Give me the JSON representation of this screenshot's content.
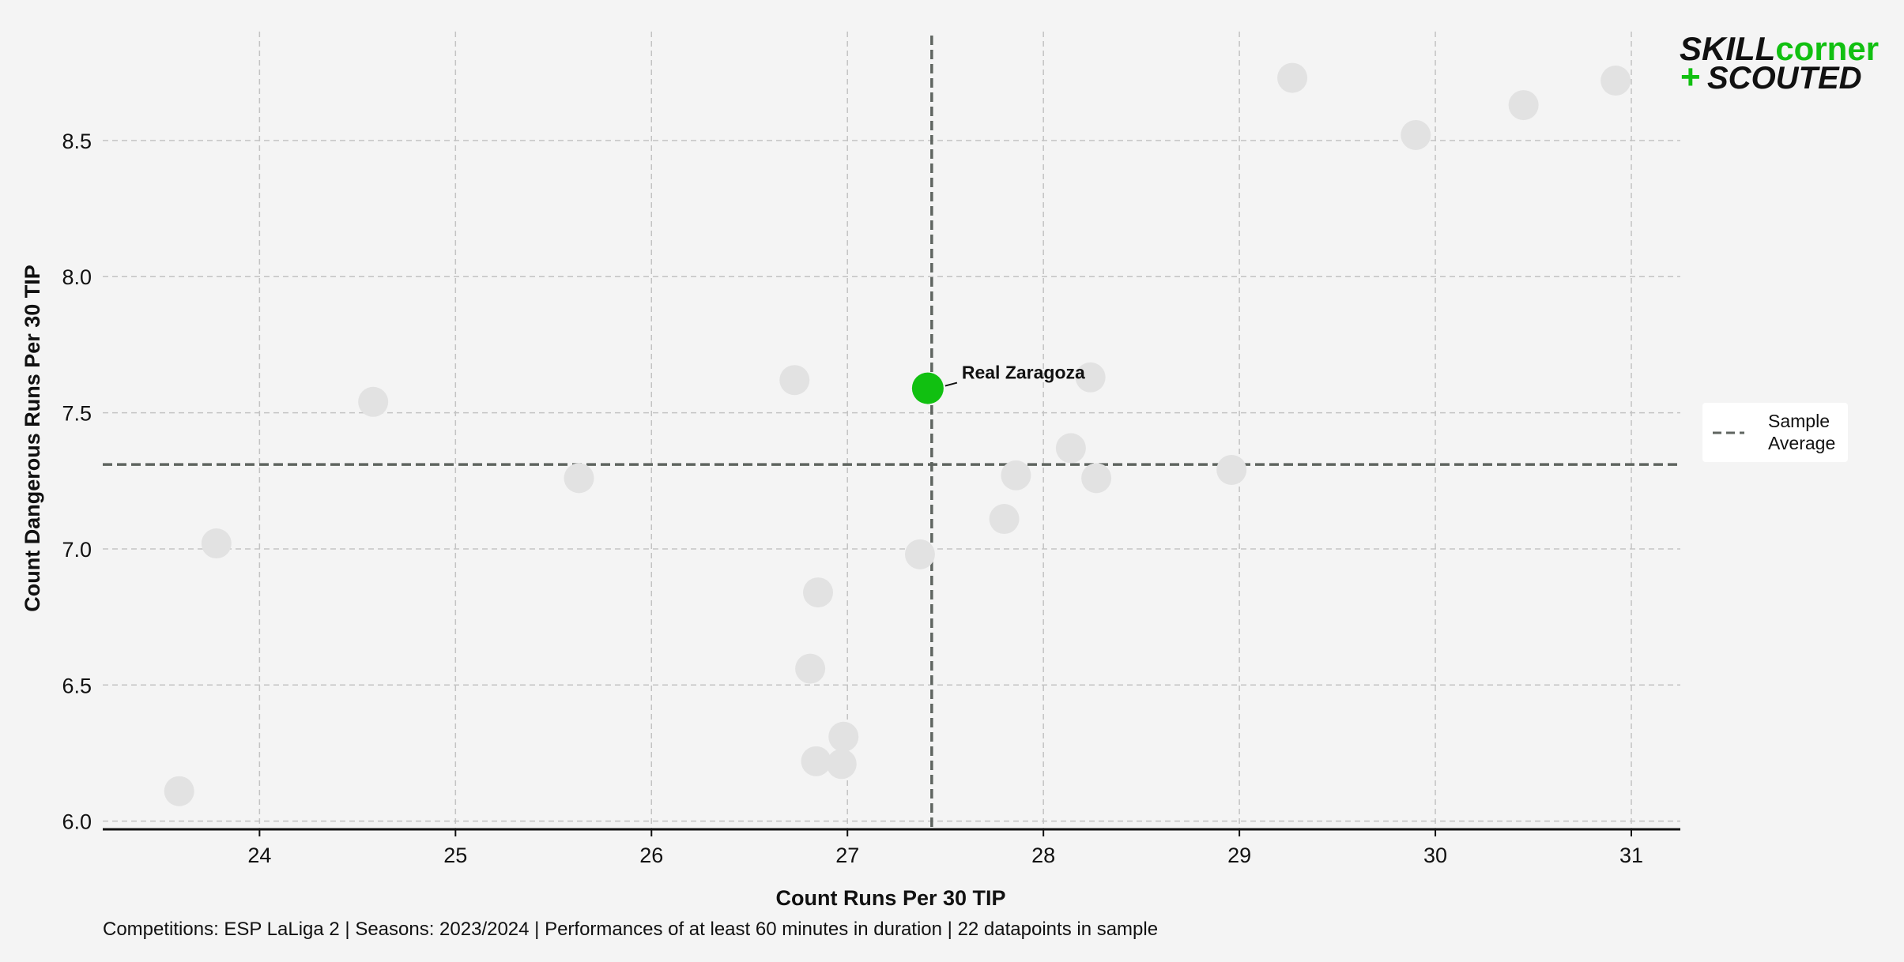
{
  "colors": {
    "background": "#f4f4f4",
    "point": "#e2e2e2",
    "highlight": "#11c011",
    "average_line": "#5f6560",
    "grid": "#c3c3c3"
  },
  "logo": {
    "skill": "SKILL",
    "corner": "corner",
    "plus": "+",
    "scouted": "SCOUTED"
  },
  "legend": {
    "line1": "Sample",
    "line2": "Average"
  },
  "footer": "Competitions: ESP LaLiga 2 | Seasons: 2023/2024 | Performances of at least 60 minutes in duration | 22 datapoints in sample",
  "chart_data": {
    "type": "scatter",
    "xlabel": "Count Runs Per 30 TIP",
    "ylabel": "Count Dangerous Runs Per 30 TIP",
    "xlim": [
      23.2,
      31.25
    ],
    "ylim": [
      5.97,
      8.9
    ],
    "xticks": [
      24,
      25,
      26,
      27,
      28,
      29,
      30,
      31
    ],
    "yticks": [
      6.0,
      6.5,
      7.0,
      7.5,
      8.0,
      8.5
    ],
    "ytick_labels": [
      "6.0",
      "6.5",
      "7.0",
      "7.5",
      "8.0",
      "8.5"
    ],
    "grid": true,
    "legend_position": "right",
    "points": [
      {
        "x": 29.27,
        "y": 8.73
      },
      {
        "x": 30.92,
        "y": 8.72
      },
      {
        "x": 30.45,
        "y": 8.63
      },
      {
        "x": 29.9,
        "y": 8.52
      },
      {
        "x": 24.58,
        "y": 7.54
      },
      {
        "x": 26.73,
        "y": 7.62
      },
      {
        "x": 28.24,
        "y": 7.63
      },
      {
        "x": 28.14,
        "y": 7.37
      },
      {
        "x": 28.96,
        "y": 7.29
      },
      {
        "x": 27.86,
        "y": 7.27
      },
      {
        "x": 28.27,
        "y": 7.26
      },
      {
        "x": 25.63,
        "y": 7.26
      },
      {
        "x": 23.78,
        "y": 7.02
      },
      {
        "x": 27.8,
        "y": 7.11
      },
      {
        "x": 27.37,
        "y": 6.98
      },
      {
        "x": 26.85,
        "y": 6.84
      },
      {
        "x": 26.81,
        "y": 6.56
      },
      {
        "x": 26.98,
        "y": 6.31
      },
      {
        "x": 26.84,
        "y": 6.22
      },
      {
        "x": 26.97,
        "y": 6.21
      },
      {
        "x": 23.59,
        "y": 6.11
      }
    ],
    "highlight": {
      "x": 27.41,
      "y": 7.59,
      "label": "Real Zaragoza"
    },
    "average": {
      "x": 27.43,
      "y": 7.31,
      "label": "Sample Average"
    }
  }
}
